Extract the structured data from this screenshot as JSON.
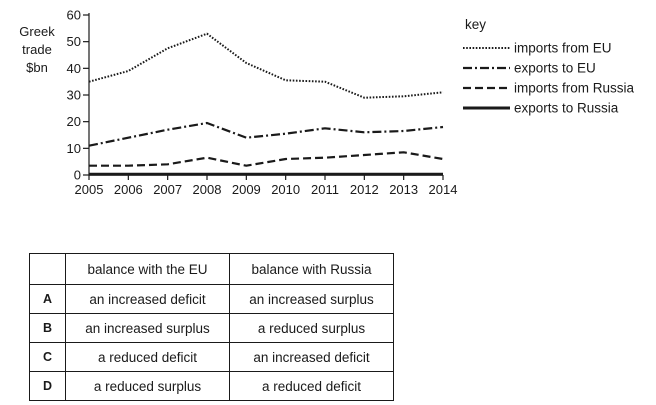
{
  "chart_data": {
    "type": "line",
    "ylabel": [
      "Greek",
      "trade",
      "$bn"
    ],
    "ylim": [
      0,
      60
    ],
    "yticks": [
      0,
      10,
      20,
      30,
      40,
      50,
      60
    ],
    "x": [
      2005,
      2006,
      2007,
      2008,
      2009,
      2010,
      2011,
      2012,
      2013,
      2014
    ],
    "legend_title": "key",
    "legend_position": "right",
    "series": [
      {
        "name": "imports from EU",
        "style": "dotted",
        "values": [
          35,
          39,
          47.5,
          53,
          42,
          35.5,
          35,
          29,
          29.5,
          31
        ]
      },
      {
        "name": "exports to EU",
        "style": "dashdot",
        "values": [
          11,
          14,
          17,
          19.5,
          14,
          15.5,
          17.5,
          16,
          16.5,
          18
        ]
      },
      {
        "name": "imports from Russia",
        "style": "dashed",
        "values": [
          3.5,
          3.5,
          4,
          6.5,
          3.5,
          6,
          6.5,
          7.5,
          8.5,
          6
        ]
      },
      {
        "name": "exports to Russia",
        "style": "solid",
        "values": [
          0.3,
          0.3,
          0.3,
          0.3,
          0.3,
          0.3,
          0.3,
          0.3,
          0.3,
          0.3
        ]
      }
    ]
  },
  "table": {
    "headers": [
      "",
      "balance with the EU",
      "balance with Russia"
    ],
    "rows": [
      {
        "option": "A",
        "eu": "an increased deficit",
        "russia": "an increased surplus"
      },
      {
        "option": "B",
        "eu": "an increased surplus",
        "russia": "a reduced surplus"
      },
      {
        "option": "C",
        "eu": "a reduced deficit",
        "russia": "an increased deficit"
      },
      {
        "option": "D",
        "eu": "a reduced surplus",
        "russia": "a reduced deficit"
      }
    ]
  },
  "colors": {
    "ink": "#1a1a1a"
  }
}
